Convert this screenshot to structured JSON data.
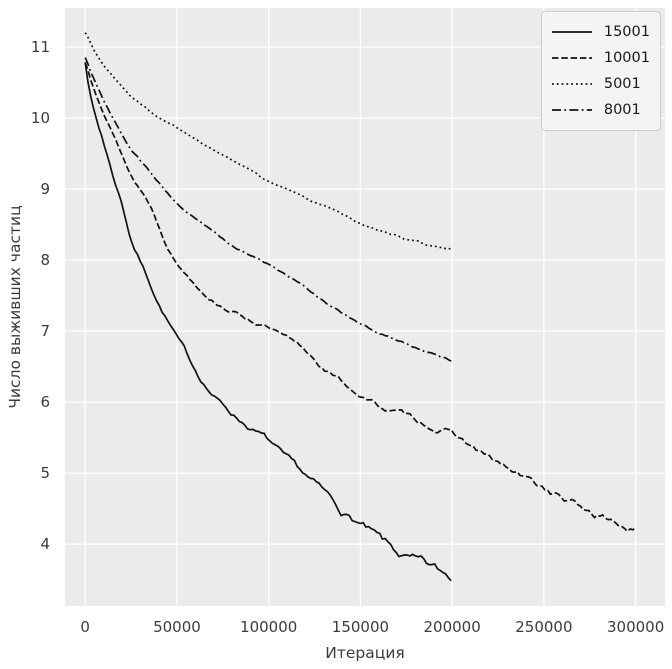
{
  "figure": {
    "background": "#ffffff",
    "plot_background": "#ebebeb",
    "grid_color": "#ffffff",
    "tick_text_color": "#3b3b3b",
    "line_color": "#111111",
    "legend_background": "#f4f4f4",
    "legend_border": "#cccccc"
  },
  "chart_data": {
    "type": "line",
    "title": "",
    "xlabel": "Итерация",
    "ylabel": "Число выживших частиц",
    "grid": true,
    "legend_position": "upper right",
    "xlim": [
      -11000,
      316000
    ],
    "ylim": [
      3.13,
      11.55
    ],
    "xticks": [
      0,
      50000,
      100000,
      150000,
      200000,
      250000,
      300000
    ],
    "xtick_labels": [
      "0",
      "50000",
      "100000",
      "150000",
      "200000",
      "250000",
      "300000"
    ],
    "yticks": [
      4,
      5,
      6,
      7,
      8,
      9,
      10,
      11
    ],
    "ytick_labels": [
      "4",
      "5",
      "6",
      "7",
      "8",
      "9",
      "10",
      "11"
    ],
    "series": [
      {
        "name": "15001",
        "style": "solid",
        "noise": 0.05,
        "seed": 7,
        "points": [
          [
            0,
            10.8
          ],
          [
            2000,
            10.45
          ],
          [
            4000,
            10.2
          ],
          [
            6000,
            10.0
          ],
          [
            8000,
            9.82
          ],
          [
            10000,
            9.65
          ],
          [
            15000,
            9.2
          ],
          [
            20000,
            8.8
          ],
          [
            25000,
            8.3
          ],
          [
            30000,
            8.0
          ],
          [
            35000,
            7.7
          ],
          [
            40000,
            7.4
          ],
          [
            45000,
            7.15
          ],
          [
            50000,
            6.9
          ],
          [
            60000,
            6.45
          ],
          [
            70000,
            6.1
          ],
          [
            80000,
            5.85
          ],
          [
            90000,
            5.65
          ],
          [
            100000,
            5.45
          ],
          [
            110000,
            5.15
          ],
          [
            120000,
            4.93
          ],
          [
            130000,
            4.7
          ],
          [
            140000,
            4.45
          ],
          [
            150000,
            4.27
          ],
          [
            160000,
            4.05
          ],
          [
            170000,
            3.85
          ],
          [
            180000,
            3.72
          ],
          [
            190000,
            3.6
          ],
          [
            200000,
            3.5
          ]
        ]
      },
      {
        "name": "10001",
        "style": "dashed",
        "noise": 0.04,
        "seed": 13,
        "points": [
          [
            0,
            10.78
          ],
          [
            3000,
            10.55
          ],
          [
            6000,
            10.35
          ],
          [
            10000,
            10.1
          ],
          [
            15000,
            9.8
          ],
          [
            20000,
            9.5
          ],
          [
            25000,
            9.2
          ],
          [
            30000,
            9.0
          ],
          [
            35000,
            8.8
          ],
          [
            40000,
            8.5
          ],
          [
            45000,
            8.2
          ],
          [
            50000,
            7.96
          ],
          [
            60000,
            7.68
          ],
          [
            70000,
            7.45
          ],
          [
            80000,
            7.3
          ],
          [
            90000,
            7.17
          ],
          [
            100000,
            7.05
          ],
          [
            110000,
            6.88
          ],
          [
            120000,
            6.7
          ],
          [
            130000,
            6.48
          ],
          [
            140000,
            6.28
          ],
          [
            150000,
            6.1
          ],
          [
            160000,
            5.95
          ],
          [
            170000,
            5.85
          ],
          [
            180000,
            5.75
          ],
          [
            190000,
            5.65
          ],
          [
            200000,
            5.55
          ],
          [
            210000,
            5.38
          ],
          [
            220000,
            5.2
          ],
          [
            230000,
            5.05
          ],
          [
            240000,
            4.9
          ],
          [
            250000,
            4.78
          ],
          [
            260000,
            4.64
          ],
          [
            270000,
            4.5
          ],
          [
            280000,
            4.4
          ],
          [
            290000,
            4.3
          ],
          [
            300000,
            4.2
          ]
        ]
      },
      {
        "name": "5001",
        "style": "dotted",
        "noise": 0.012,
        "seed": 3,
        "points": [
          [
            0,
            11.2
          ],
          [
            5000,
            10.95
          ],
          [
            10000,
            10.75
          ],
          [
            15000,
            10.6
          ],
          [
            20000,
            10.45
          ],
          [
            25000,
            10.3
          ],
          [
            30000,
            10.2
          ],
          [
            40000,
            10.0
          ],
          [
            50000,
            9.87
          ],
          [
            60000,
            9.7
          ],
          [
            70000,
            9.55
          ],
          [
            80000,
            9.4
          ],
          [
            90000,
            9.25
          ],
          [
            100000,
            9.1
          ],
          [
            110000,
            9.0
          ],
          [
            120000,
            8.87
          ],
          [
            130000,
            8.75
          ],
          [
            140000,
            8.62
          ],
          [
            150000,
            8.5
          ],
          [
            160000,
            8.42
          ],
          [
            170000,
            8.35
          ],
          [
            180000,
            8.27
          ],
          [
            190000,
            8.2
          ],
          [
            200000,
            8.15
          ]
        ]
      },
      {
        "name": "8001",
        "style": "dashdot",
        "noise": 0.015,
        "seed": 5,
        "points": [
          [
            0,
            10.85
          ],
          [
            3000,
            10.65
          ],
          [
            6000,
            10.48
          ],
          [
            10000,
            10.25
          ],
          [
            15000,
            10.0
          ],
          [
            20000,
            9.77
          ],
          [
            25000,
            9.55
          ],
          [
            30000,
            9.4
          ],
          [
            40000,
            9.1
          ],
          [
            50000,
            8.8
          ],
          [
            60000,
            8.58
          ],
          [
            70000,
            8.4
          ],
          [
            80000,
            8.2
          ],
          [
            90000,
            8.07
          ],
          [
            100000,
            7.95
          ],
          [
            110000,
            7.78
          ],
          [
            120000,
            7.6
          ],
          [
            130000,
            7.43
          ],
          [
            140000,
            7.27
          ],
          [
            150000,
            7.1
          ],
          [
            160000,
            6.98
          ],
          [
            170000,
            6.88
          ],
          [
            180000,
            6.78
          ],
          [
            190000,
            6.68
          ],
          [
            200000,
            6.6
          ]
        ]
      }
    ]
  }
}
